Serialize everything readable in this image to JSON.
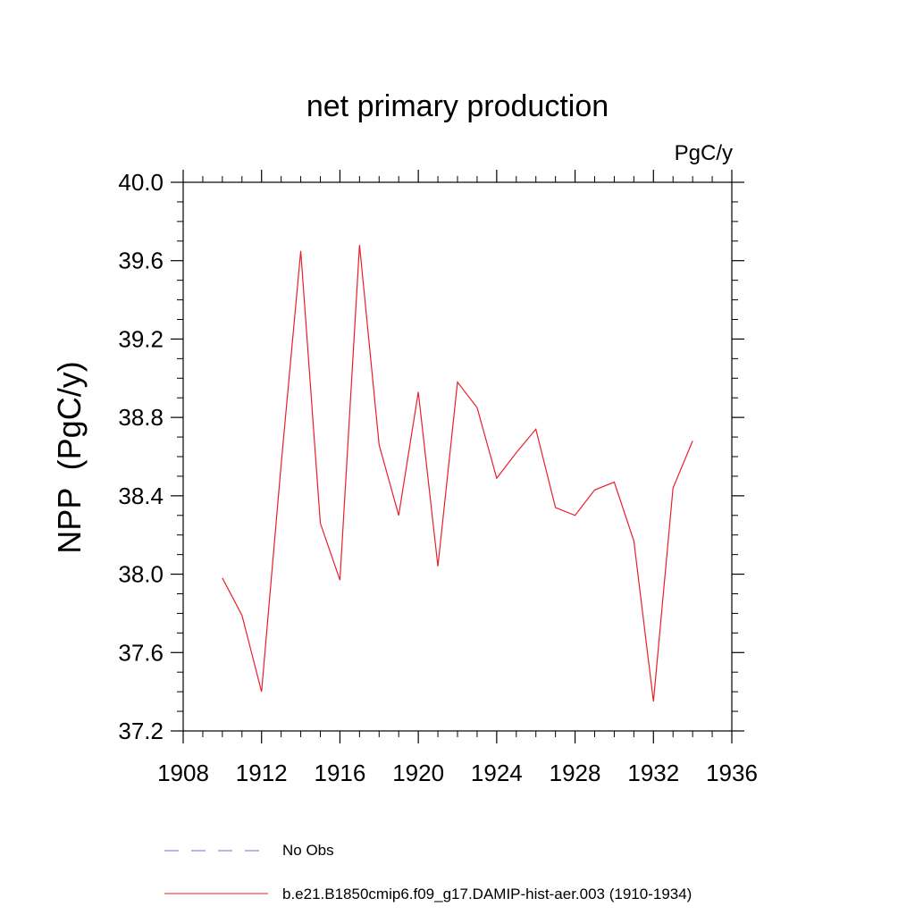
{
  "chart_data": {
    "type": "line",
    "title": "net primary production",
    "units_label": "PgC/y",
    "ylabel": "NPP  (PgC/y)",
    "xlabel": "",
    "xlim": [
      1908,
      1936
    ],
    "ylim": [
      37.2,
      40.0
    ],
    "xticks": [
      1908,
      1912,
      1916,
      1920,
      1924,
      1928,
      1932,
      1936
    ],
    "xtick_labels": [
      "1908",
      "1912",
      "1916",
      "1920",
      "1924",
      "1928",
      "1932",
      "1936"
    ],
    "yticks": [
      37.2,
      37.6,
      38.0,
      38.4,
      38.8,
      39.2,
      39.6,
      40.0
    ],
    "ytick_labels": [
      "37.2",
      "37.6",
      "38.0",
      "38.4",
      "38.8",
      "39.2",
      "39.6",
      "40.0"
    ],
    "grid": false,
    "legend_position": "bottom",
    "series": [
      {
        "name": "No Obs",
        "color": "#7b6fd0",
        "dash": true,
        "x": [],
        "y": []
      },
      {
        "name": "b.e21.B1850cmip6.f09_g17.DAMIP-hist-aer.003 (1910-1934)",
        "color": "#e8202a",
        "dash": false,
        "x": [
          1910,
          1911,
          1912,
          1913,
          1914,
          1915,
          1916,
          1917,
          1918,
          1919,
          1920,
          1921,
          1922,
          1923,
          1924,
          1925,
          1926,
          1927,
          1928,
          1929,
          1930,
          1931,
          1932,
          1933,
          1934
        ],
        "y": [
          37.98,
          37.79,
          37.4,
          38.56,
          39.65,
          38.26,
          37.97,
          39.68,
          38.66,
          38.3,
          38.93,
          38.04,
          38.98,
          38.85,
          38.49,
          38.62,
          38.74,
          38.34,
          38.3,
          38.43,
          38.47,
          38.17,
          37.35,
          38.44,
          38.68
        ]
      }
    ]
  }
}
